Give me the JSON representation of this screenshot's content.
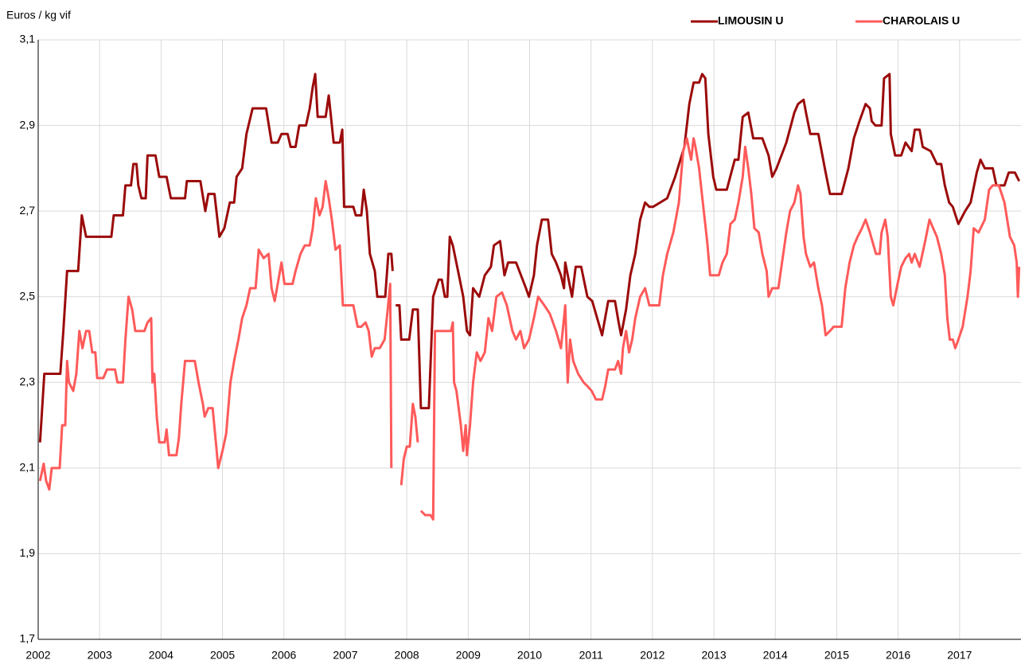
{
  "chart_data": {
    "type": "line",
    "y_label": "Euros  / kg vif",
    "xlim": [
      2002,
      2018
    ],
    "xticks": [
      2002,
      2003,
      2004,
      2005,
      2006,
      2007,
      2008,
      2009,
      2010,
      2011,
      2012,
      2013,
      2014,
      2015,
      2016,
      2017
    ],
    "ylim": [
      1.7,
      3.1
    ],
    "yticks": [
      {
        "value": 1.7,
        "label": "1,7"
      },
      {
        "value": 1.9,
        "label": "1,9"
      },
      {
        "value": 2.1,
        "label": "2,1"
      },
      {
        "value": 2.3,
        "label": "2,3"
      },
      {
        "value": 2.5,
        "label": "2,5"
      },
      {
        "value": 2.7,
        "label": "2,7"
      },
      {
        "value": 2.9,
        "label": "2,9"
      },
      {
        "value": 3.1,
        "label": "3,1"
      }
    ],
    "grid": true,
    "legend": "top-right",
    "series": [
      {
        "name": "LIMOUSIN U",
        "color": "#9b0a0a",
        "x": [
          2002.03,
          2002.1,
          2002.36,
          2002.41,
          2002.47,
          2002.65,
          2002.71,
          2002.78,
          2003.19,
          2003.23,
          2003.38,
          2003.42,
          2003.51,
          2003.55,
          2003.6,
          2003.63,
          2003.68,
          2003.75,
          2003.78,
          2003.91,
          2003.97,
          2004.09,
          2004.16,
          2004.39,
          2004.42,
          2004.64,
          2004.72,
          2004.77,
          2004.87,
          2004.95,
          2005.03,
          2005.12,
          2005.19,
          2005.23,
          2005.32,
          2005.39,
          2005.49,
          2005.71,
          2005.8,
          2005.9,
          2005.96,
          2006.06,
          2006.11,
          2006.19,
          2006.25,
          2006.36,
          2006.42,
          2006.47,
          2006.51,
          2006.55,
          2006.68,
          2006.73,
          2006.81,
          2006.91,
          2006.95,
          2006.98,
          2007.13,
          2007.17,
          2007.26,
          2007.3,
          2007.35,
          2007.4,
          2007.48,
          2007.52,
          2007.65,
          2007.7,
          2007.75,
          2007.77,
          2007.8,
          2007.82,
          2007.88,
          2007.91,
          2008.04,
          2008.1,
          2008.18,
          2008.23,
          2008.36,
          2008.43,
          2008.52,
          2008.57,
          2008.62,
          2008.66,
          2008.7,
          2008.75,
          2008.85,
          2008.92,
          2008.98,
          2009.03,
          2009.08,
          2009.18,
          2009.27,
          2009.37,
          2009.42,
          2009.52,
          2009.59,
          2009.65,
          2009.78,
          2009.86,
          2009.94,
          2009.99,
          2010.07,
          2010.12,
          2010.2,
          2010.3,
          2010.36,
          2010.43,
          2010.51,
          2010.56,
          2010.58,
          2010.69,
          2010.75,
          2010.84,
          2010.94,
          2011.02,
          2011.1,
          2011.18,
          2011.23,
          2011.28,
          2011.39,
          2011.45,
          2011.49,
          2011.57,
          2011.64,
          2011.72,
          2011.8,
          2011.88,
          2011.95,
          2012.01,
          2012.24,
          2012.37,
          2012.52,
          2012.6,
          2012.67,
          2012.76,
          2012.81,
          2012.86,
          2012.91,
          2012.99,
          2013.04,
          2013.21,
          2013.34,
          2013.4,
          2013.47,
          2013.56,
          2013.64,
          2013.79,
          2013.89,
          2013.95,
          2014.02,
          2014.18,
          2014.31,
          2014.37,
          2014.46,
          2014.5,
          2014.57,
          2014.7,
          2014.82,
          2014.89,
          2015.08,
          2015.19,
          2015.28,
          2015.37,
          2015.47,
          2015.54,
          2015.57,
          2015.63,
          2015.73,
          2015.77,
          2015.86,
          2015.88,
          2015.95,
          2016.05,
          2016.12,
          2016.22,
          2016.27,
          2016.35,
          2016.4,
          2016.53,
          2016.63,
          2016.7,
          2016.76,
          2016.83,
          2016.89,
          2016.98,
          2017.09,
          2017.18,
          2017.28,
          2017.34,
          2017.41,
          2017.54,
          2017.6,
          2017.73,
          2017.8,
          2017.9,
          2017.97
        ],
        "values": [
          2.16,
          2.32,
          2.32,
          2.42,
          2.56,
          2.56,
          2.69,
          2.64,
          2.64,
          2.69,
          2.69,
          2.76,
          2.76,
          2.81,
          2.81,
          2.76,
          2.73,
          2.73,
          2.83,
          2.83,
          2.78,
          2.78,
          2.73,
          2.73,
          2.77,
          2.77,
          2.7,
          2.74,
          2.74,
          2.64,
          2.66,
          2.72,
          2.72,
          2.78,
          2.8,
          2.88,
          2.94,
          2.94,
          2.86,
          2.86,
          2.88,
          2.88,
          2.85,
          2.85,
          2.9,
          2.9,
          2.94,
          2.99,
          3.02,
          2.92,
          2.92,
          2.97,
          2.86,
          2.86,
          2.89,
          2.71,
          2.71,
          2.69,
          2.69,
          2.75,
          2.7,
          2.6,
          2.56,
          2.5,
          2.5,
          2.6,
          2.6,
          2.56,
          null,
          2.48,
          2.48,
          2.4,
          2.4,
          2.47,
          2.47,
          2.24,
          2.24,
          2.5,
          2.54,
          2.54,
          2.5,
          2.5,
          2.64,
          2.62,
          2.55,
          2.5,
          2.42,
          2.41,
          2.52,
          2.5,
          2.55,
          2.57,
          2.62,
          2.63,
          2.55,
          2.58,
          2.58,
          2.55,
          2.52,
          2.5,
          2.55,
          2.62,
          2.68,
          2.68,
          2.6,
          2.58,
          2.55,
          2.52,
          2.58,
          2.5,
          2.57,
          2.57,
          2.5,
          2.49,
          2.45,
          2.41,
          2.45,
          2.49,
          2.49,
          2.44,
          2.41,
          2.47,
          2.55,
          2.6,
          2.68,
          2.72,
          2.71,
          2.71,
          2.73,
          2.78,
          2.85,
          2.95,
          3.0,
          3.0,
          3.02,
          3.01,
          2.88,
          2.78,
          2.75,
          2.75,
          2.82,
          2.82,
          2.92,
          2.93,
          2.87,
          2.87,
          2.83,
          2.78,
          2.8,
          2.86,
          2.93,
          2.95,
          2.96,
          2.93,
          2.88,
          2.88,
          2.79,
          2.74,
          2.74,
          2.8,
          2.87,
          2.91,
          2.95,
          2.94,
          2.91,
          2.9,
          2.9,
          3.01,
          3.02,
          2.88,
          2.83,
          2.83,
          2.86,
          2.84,
          2.89,
          2.89,
          2.85,
          2.84,
          2.81,
          2.81,
          2.76,
          2.72,
          2.71,
          2.67,
          2.7,
          2.72,
          2.79,
          2.82,
          2.8,
          2.8,
          2.76,
          2.76,
          2.79,
          2.79,
          2.77
        ]
      },
      {
        "name": "CHAROLAIS U",
        "color": "#ff5a5a",
        "x": [
          2002.03,
          2002.09,
          2002.13,
          2002.18,
          2002.22,
          2002.35,
          2002.39,
          2002.44,
          2002.47,
          2002.5,
          2002.57,
          2002.62,
          2002.67,
          2002.72,
          2002.78,
          2002.83,
          2002.88,
          2002.93,
          2002.96,
          2003.06,
          2003.12,
          2003.25,
          2003.29,
          2003.38,
          2003.42,
          2003.47,
          2003.53,
          2003.58,
          2003.73,
          2003.78,
          2003.84,
          2003.86,
          2003.89,
          2003.93,
          2003.97,
          2004.06,
          2004.09,
          2004.13,
          2004.25,
          2004.29,
          2004.33,
          2004.39,
          2004.55,
          2004.61,
          2004.68,
          2004.71,
          2004.77,
          2004.84,
          2004.9,
          2004.93,
          2005.0,
          2005.06,
          2005.13,
          2005.19,
          2005.26,
          2005.32,
          2005.39,
          2005.45,
          2005.54,
          2005.59,
          2005.67,
          2005.75,
          2005.8,
          2005.85,
          2005.9,
          2005.96,
          2006.01,
          2006.14,
          2006.19,
          2006.27,
          2006.34,
          2006.42,
          2006.47,
          2006.52,
          2006.58,
          2006.63,
          2006.68,
          2006.73,
          2006.78,
          2006.84,
          2006.91,
          2006.96,
          2007.13,
          2007.2,
          2007.26,
          2007.33,
          2007.38,
          2007.43,
          2007.48,
          2007.56,
          2007.64,
          2007.69,
          2007.73,
          2007.75,
          2007.83,
          2007.91,
          2007.95,
          2008.0,
          2008.05,
          2008.1,
          2008.14,
          2008.18,
          2008.2,
          2008.23,
          2008.3,
          2008.39,
          2008.43,
          2008.46,
          2008.72,
          2008.75,
          2008.77,
          2008.81,
          2008.88,
          2008.92,
          2008.96,
          2008.98,
          2009.03,
          2009.08,
          2009.14,
          2009.2,
          2009.27,
          2009.33,
          2009.39,
          2009.46,
          2009.55,
          2009.63,
          2009.72,
          2009.78,
          2009.85,
          2009.91,
          2009.99,
          2010.07,
          2010.14,
          2010.24,
          2010.33,
          2010.43,
          2010.51,
          2010.56,
          2010.58,
          2010.62,
          2010.66,
          2010.71,
          2010.79,
          2010.88,
          2010.95,
          2011.01,
          2011.08,
          2011.18,
          2011.23,
          2011.28,
          2011.39,
          2011.44,
          2011.49,
          2011.52,
          2011.57,
          2011.62,
          2011.67,
          2011.72,
          2011.8,
          2011.88,
          2011.95,
          2012.11,
          2012.17,
          2012.24,
          2012.34,
          2012.43,
          2012.5,
          2012.56,
          2012.6,
          2012.63,
          2012.67,
          2012.7,
          2012.76,
          2012.82,
          2012.89,
          2012.94,
          2013.08,
          2013.14,
          2013.21,
          2013.27,
          2013.34,
          2013.4,
          2013.47,
          2013.51,
          2013.56,
          2013.61,
          2013.66,
          2013.73,
          2013.79,
          2013.86,
          2013.89,
          2013.95,
          2014.05,
          2014.11,
          2014.18,
          2014.24,
          2014.31,
          2014.37,
          2014.41,
          2014.46,
          2014.5,
          2014.57,
          2014.63,
          2014.7,
          2014.76,
          2014.82,
          2014.89,
          2014.95,
          2015.08,
          2015.14,
          2015.21,
          2015.28,
          2015.34,
          2015.41,
          2015.47,
          2015.54,
          2015.6,
          2015.64,
          2015.7,
          2015.73,
          2015.79,
          2015.83,
          2015.88,
          2015.92,
          2015.99,
          2016.05,
          2016.12,
          2016.18,
          2016.22,
          2016.27,
          2016.35,
          2016.44,
          2016.51,
          2016.57,
          2016.63,
          2016.7,
          2016.76,
          2016.8,
          2016.84,
          2016.89,
          2016.93,
          2016.98,
          2017.05,
          2017.13,
          2017.18,
          2017.23,
          2017.31,
          2017.41,
          2017.48,
          2017.54,
          2017.64,
          2017.73,
          2017.82,
          2017.89,
          2017.93,
          2017.95,
          2017.97
        ],
        "values": [
          2.07,
          2.11,
          2.07,
          2.05,
          2.1,
          2.1,
          2.2,
          2.2,
          2.35,
          2.3,
          2.28,
          2.32,
          2.42,
          2.38,
          2.42,
          2.42,
          2.37,
          2.37,
          2.31,
          2.31,
          2.33,
          2.33,
          2.3,
          2.3,
          2.4,
          2.5,
          2.47,
          2.42,
          2.42,
          2.44,
          2.45,
          2.3,
          2.32,
          2.22,
          2.16,
          2.16,
          2.19,
          2.13,
          2.13,
          2.17,
          2.25,
          2.35,
          2.35,
          2.3,
          2.25,
          2.22,
          2.24,
          2.24,
          2.15,
          2.1,
          2.14,
          2.18,
          2.3,
          2.35,
          2.4,
          2.45,
          2.48,
          2.52,
          2.52,
          2.61,
          2.59,
          2.6,
          2.52,
          2.49,
          2.53,
          2.58,
          2.53,
          2.53,
          2.56,
          2.6,
          2.62,
          2.62,
          2.66,
          2.73,
          2.69,
          2.71,
          2.77,
          2.73,
          2.68,
          2.61,
          2.62,
          2.48,
          2.48,
          2.43,
          2.43,
          2.44,
          2.42,
          2.36,
          2.38,
          2.38,
          2.4,
          2.47,
          2.53,
          2.1,
          null,
          2.06,
          2.12,
          2.15,
          2.15,
          2.25,
          2.22,
          2.16,
          null,
          2.0,
          1.99,
          1.99,
          1.98,
          2.42,
          2.42,
          2.44,
          2.3,
          2.28,
          2.2,
          2.14,
          2.2,
          2.13,
          2.2,
          2.3,
          2.37,
          2.35,
          2.37,
          2.45,
          2.42,
          2.5,
          2.51,
          2.48,
          2.42,
          2.4,
          2.42,
          2.38,
          2.4,
          2.45,
          2.5,
          2.48,
          2.46,
          2.42,
          2.38,
          2.45,
          2.48,
          2.3,
          2.4,
          2.35,
          2.32,
          2.3,
          2.29,
          2.28,
          2.26,
          2.26,
          2.29,
          2.33,
          2.33,
          2.35,
          2.32,
          2.38,
          2.42,
          2.37,
          2.4,
          2.45,
          2.5,
          2.52,
          2.48,
          2.48,
          2.55,
          2.6,
          2.65,
          2.72,
          2.84,
          2.87,
          2.84,
          2.82,
          2.87,
          2.85,
          2.8,
          2.72,
          2.63,
          2.55,
          2.55,
          2.58,
          2.6,
          2.67,
          2.68,
          2.72,
          2.78,
          2.85,
          2.8,
          2.74,
          2.66,
          2.65,
          2.6,
          2.56,
          2.5,
          2.52,
          2.52,
          2.58,
          2.65,
          2.7,
          2.72,
          2.76,
          2.74,
          2.64,
          2.6,
          2.57,
          2.58,
          2.52,
          2.48,
          2.41,
          2.42,
          2.43,
          2.43,
          2.52,
          2.58,
          2.62,
          2.64,
          2.66,
          2.68,
          2.65,
          2.62,
          2.6,
          2.6,
          2.65,
          2.68,
          2.64,
          2.5,
          2.48,
          2.53,
          2.57,
          2.59,
          2.6,
          2.58,
          2.6,
          2.57,
          2.63,
          2.68,
          2.66,
          2.64,
          2.6,
          2.55,
          2.45,
          2.4,
          2.4,
          2.38,
          2.4,
          2.43,
          2.5,
          2.56,
          2.66,
          2.65,
          2.68,
          2.75,
          2.76,
          2.76,
          2.72,
          2.64,
          2.62,
          2.58,
          2.5,
          2.57
        ]
      }
    ]
  }
}
